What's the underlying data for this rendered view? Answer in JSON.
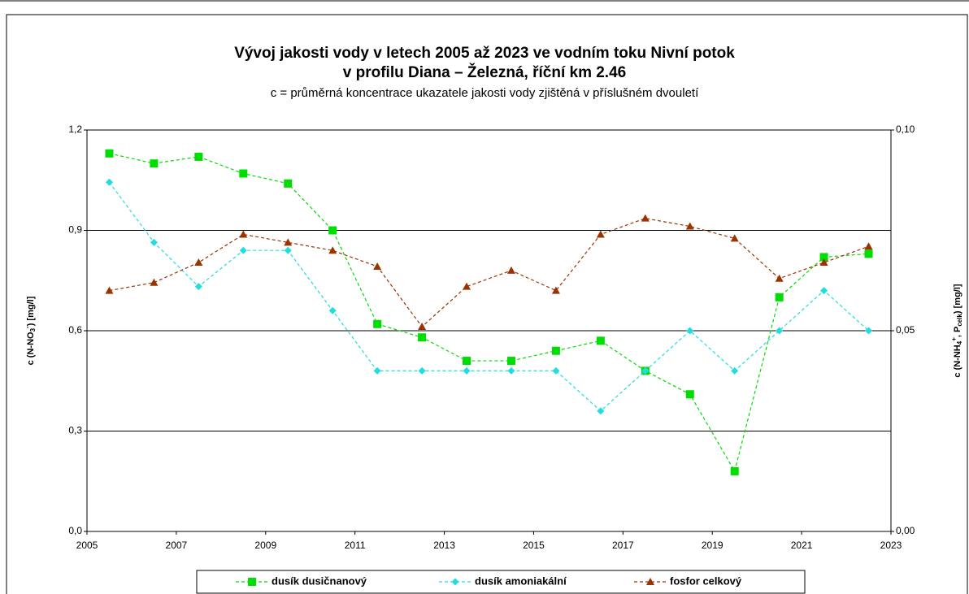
{
  "chart_data": {
    "type": "line",
    "title": [
      "Vývoj jakosti vody v letech 2005 až 2023 ve vodním toku Nivní potok",
      "v profilu Diana – Železná, říční km 2.46"
    ],
    "subtitle": "c = průměrná koncentrace ukazatele jakosti vody zjištěná v příslušném dvouletí",
    "ylabel": [
      "c (N-NO",
      "3",
      "-",
      ") [mg/l]"
    ],
    "y2label": [
      "c (N-NH",
      "4",
      "+",
      ", P",
      "celk",
      ") [mg/l]"
    ],
    "x": [
      2005.5,
      2006.5,
      2007.5,
      2008.5,
      2009.5,
      2010.5,
      2011.5,
      2012.5,
      2013.5,
      2014.5,
      2015.5,
      2016.5,
      2017.5,
      2018.5,
      2019.5,
      2020.5,
      2021.5,
      2022.5
    ],
    "xlim": [
      2005,
      2023
    ],
    "xticks": [
      2005,
      2007,
      2009,
      2011,
      2013,
      2015,
      2017,
      2019,
      2021,
      2023
    ],
    "ylim": [
      0,
      1.2
    ],
    "yticks": [
      {
        "value": 0,
        "label": "0,0"
      },
      {
        "value": 0.3,
        "label": "0,3"
      },
      {
        "value": 0.6,
        "label": "0,6"
      },
      {
        "value": 0.9,
        "label": "0,9"
      },
      {
        "value": 1.2,
        "label": "1,2"
      }
    ],
    "y2lim": [
      0,
      0.1
    ],
    "y2ticks": [
      {
        "value": 0,
        "label": "0,00"
      },
      {
        "value": 0.05,
        "label": "0,05"
      },
      {
        "value": 0.1,
        "label": "0,10"
      }
    ],
    "grid": true,
    "series": [
      {
        "name": "dusík dusičnanový",
        "color": "#00dd00",
        "marker": "square",
        "axis": "y",
        "values": [
          1.13,
          1.1,
          1.12,
          1.07,
          1.04,
          0.9,
          0.62,
          0.58,
          0.51,
          0.51,
          0.54,
          0.57,
          0.48,
          0.41,
          0.18,
          0.7,
          0.82,
          0.83
        ]
      },
      {
        "name": "dusík amoniakální",
        "color": "#22dddd",
        "marker": "diamond",
        "axis": "y2",
        "values": [
          0.087,
          0.072,
          0.061,
          0.07,
          0.07,
          0.055,
          0.04,
          0.04,
          0.04,
          0.04,
          0.04,
          0.03,
          0.04,
          0.05,
          0.04,
          0.05,
          0.06,
          0.05
        ]
      },
      {
        "name": "fosfor celkový",
        "color": "#993300",
        "marker": "triangle",
        "axis": "y2",
        "values": [
          0.06,
          0.062,
          0.067,
          0.074,
          0.072,
          0.07,
          0.066,
          0.051,
          0.061,
          0.065,
          0.06,
          0.074,
          0.078,
          0.076,
          0.073,
          0.063,
          0.067,
          0.071
        ]
      }
    ]
  }
}
